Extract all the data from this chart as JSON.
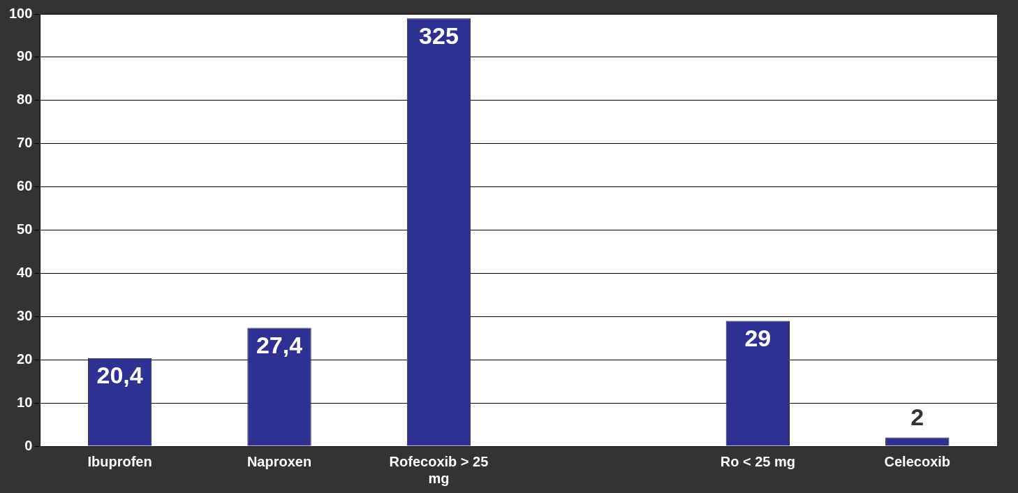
{
  "chart_data": {
    "type": "bar",
    "categories": [
      "Ibuprofen",
      "Naproxen",
      "Rofecoxib > 25 mg",
      null,
      "Ro < 25 mg",
      "Celecoxib"
    ],
    "series": [
      {
        "color": "#2e3192",
        "values": [
          20.4,
          27.4,
          99,
          null,
          29,
          2
        ]
      }
    ],
    "value_labels": [
      "20,4",
      "27,4",
      "325",
      null,
      "29",
      "2"
    ],
    "ylim": [
      0,
      100
    ],
    "yticks": [
      0,
      10,
      20,
      30,
      40,
      50,
      60,
      70,
      80,
      90,
      100
    ],
    "grid": "y",
    "legend": false
  }
}
